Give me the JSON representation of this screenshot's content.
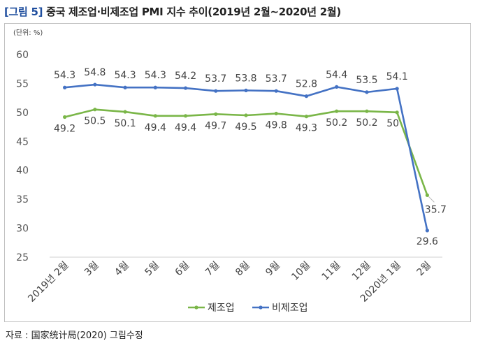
{
  "title": {
    "tag": "[그림 5]",
    "text": "중국 제조업·비제조업 PMI 지수 추이(2019년 2월~2020년 2월)"
  },
  "source": "자료 : 国家统计局(2020) 그림수정",
  "chart_data": {
    "type": "line",
    "unit_label": "(단위: %)",
    "xlabel": "",
    "ylabel": "",
    "ylim": [
      25,
      60
    ],
    "yticks": [
      25,
      30,
      35,
      40,
      45,
      50,
      55,
      60
    ],
    "grid": false,
    "legend_position": "bottom",
    "categories": [
      "2019년 2월",
      "3월",
      "4월",
      "5월",
      "6월",
      "7월",
      "8월",
      "9월",
      "10월",
      "11월",
      "12월",
      "2020년 1월",
      "2월"
    ],
    "series": [
      {
        "name": "제조업",
        "color": "#7ab648",
        "values": [
          49.2,
          50.5,
          50.1,
          49.4,
          49.4,
          49.7,
          49.5,
          49.8,
          49.3,
          50.2,
          50.2,
          50,
          35.7
        ]
      },
      {
        "name": "비제조업",
        "color": "#4472c4",
        "values": [
          54.3,
          54.8,
          54.3,
          54.3,
          54.2,
          53.7,
          53.8,
          53.7,
          52.8,
          54.4,
          53.5,
          54.1,
          29.6
        ]
      }
    ]
  }
}
